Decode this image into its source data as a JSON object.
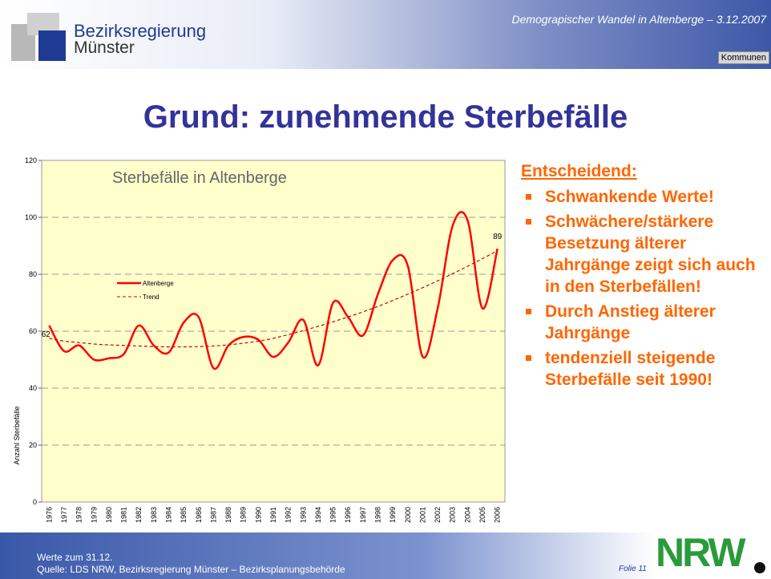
{
  "header": {
    "org_line1": "Bezirksregierung",
    "org_line2": "Münster",
    "subtitle": "Demograpischer Wandel in Altenberge  – 3.12.2007",
    "button": "Kommunen"
  },
  "title": "Grund: zunehmende Sterbefälle",
  "side_text": {
    "heading": "Entscheidend:",
    "bullets": [
      "Schwankende Werte!",
      "Schwächere/stärkere Besetzung älterer Jahrgänge zeigt sich auch in den Sterbefällen!",
      "Durch Anstieg älterer Jahrgänge",
      "tendenziell steigende Sterbefälle seit 1990!"
    ]
  },
  "footer": {
    "line1": "Werte zum 31.12.",
    "line2": "Quelle: LDS NRW, Bezirksregierung Münster – Bezirksplanungsbehörde",
    "slide": "Folie 11",
    "logo": "NRW"
  },
  "chart_data": {
    "type": "line",
    "title": "Sterbefälle in Altenberge",
    "y_label": "Anzahl  Sterbefälle",
    "categories": [
      "1976",
      "1977",
      "1978",
      "1979",
      "1980",
      "1981",
      "1982",
      "1983",
      "1984",
      "1985",
      "1986",
      "1987",
      "1988",
      "1989",
      "1990",
      "1991",
      "1992",
      "1993",
      "1994",
      "1995",
      "1996",
      "1997",
      "1998",
      "1999",
      "2000",
      "2001",
      "2002",
      "2003",
      "2004",
      "2005",
      "2006"
    ],
    "series": [
      {
        "name": "Altenberge",
        "color": "#ff0000",
        "values": [
          62,
          53,
          55,
          50,
          50.5,
          52,
          62,
          55,
          52.5,
          63,
          65,
          47,
          55,
          58,
          57,
          51,
          56,
          64,
          48,
          70,
          65,
          58.5,
          73,
          85,
          83,
          51,
          68,
          97,
          99,
          68,
          89
        ]
      },
      {
        "name": "Trend",
        "color": "#cc0000",
        "dashed": true,
        "values": [
          57.5,
          56.5,
          56,
          55.5,
          55.2,
          55,
          54.8,
          54.6,
          54.5,
          54.5,
          54.6,
          54.8,
          55.2,
          55.8,
          56.5,
          57.5,
          58.8,
          60.2,
          61.7,
          63.3,
          65,
          66.8,
          68.7,
          70.8,
          73,
          75.3,
          77.7,
          80.2,
          82.8,
          85.5,
          88.3
        ]
      }
    ],
    "ylim": [
      0,
      120
    ],
    "yticks": [
      0,
      20,
      40,
      60,
      80,
      100,
      120
    ],
    "grid": true,
    "background": "#ffffcc"
  }
}
